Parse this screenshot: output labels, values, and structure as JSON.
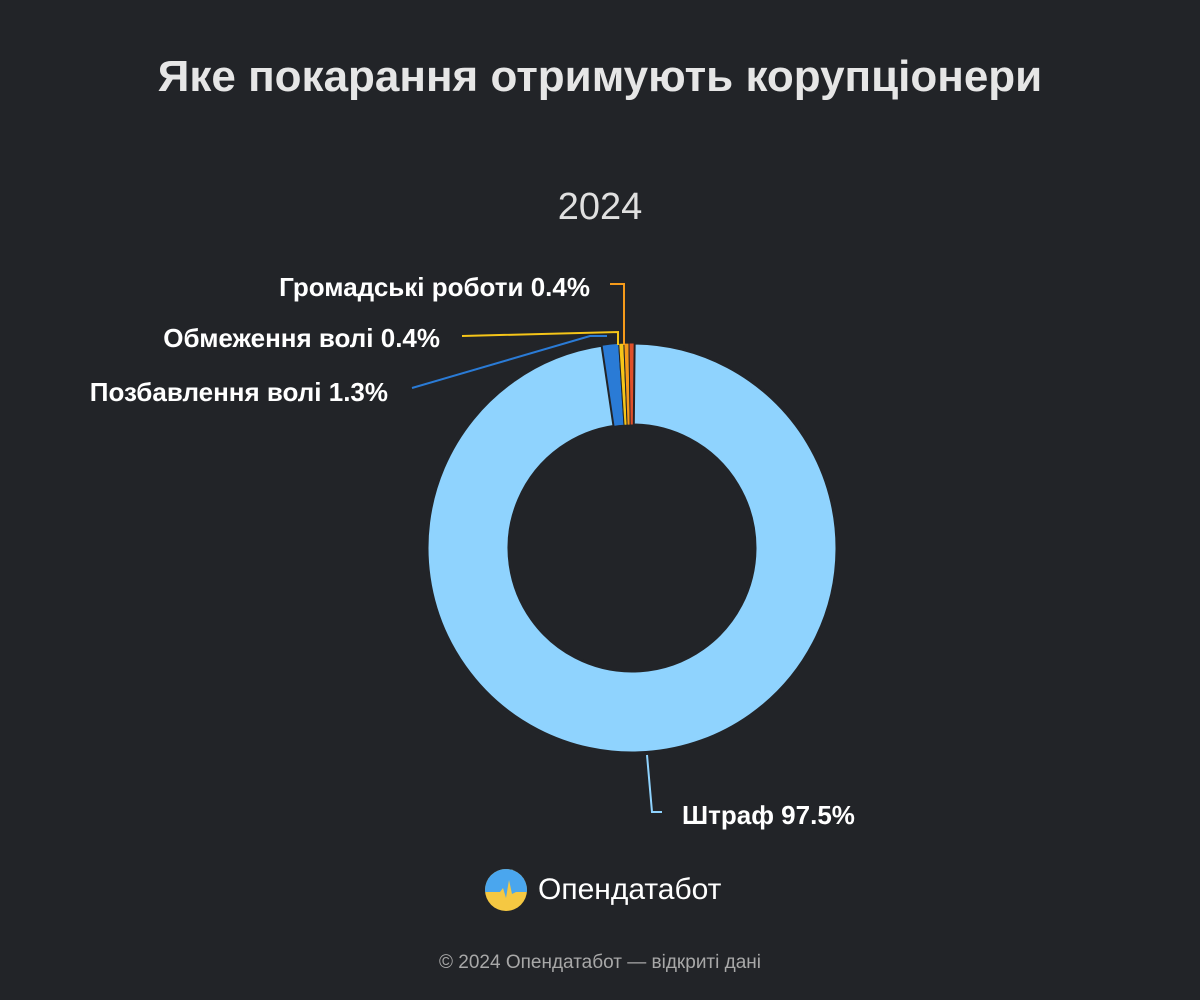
{
  "chart_data": {
    "type": "pie",
    "subtype": "donut",
    "title": "Яке покарання отримують корупціонери",
    "subtitle": "2024",
    "slices": [
      {
        "label": "Штраф 97.5%",
        "name": "Штраф",
        "value": 97.5,
        "color": "#8fd3fe"
      },
      {
        "label": "Позбавлення волі 1.3%",
        "name": "Позбавлення волі",
        "value": 1.3,
        "color": "#2a7bd6"
      },
      {
        "label": "Обмеження волі 0.4%",
        "name": "Обмеження волі",
        "value": 0.4,
        "color": "#f5c518"
      },
      {
        "label": "Громадські роботи 0.4%",
        "name": "Громадські роботи",
        "value": 0.4,
        "color": "#f59a1a"
      },
      {
        "label": "",
        "name": "",
        "value": 0.4,
        "color": "#e0502a"
      }
    ]
  },
  "branding": {
    "logo_text": "Опендатабот",
    "footer": "© 2024 Опендатабот — відкриті дані"
  }
}
